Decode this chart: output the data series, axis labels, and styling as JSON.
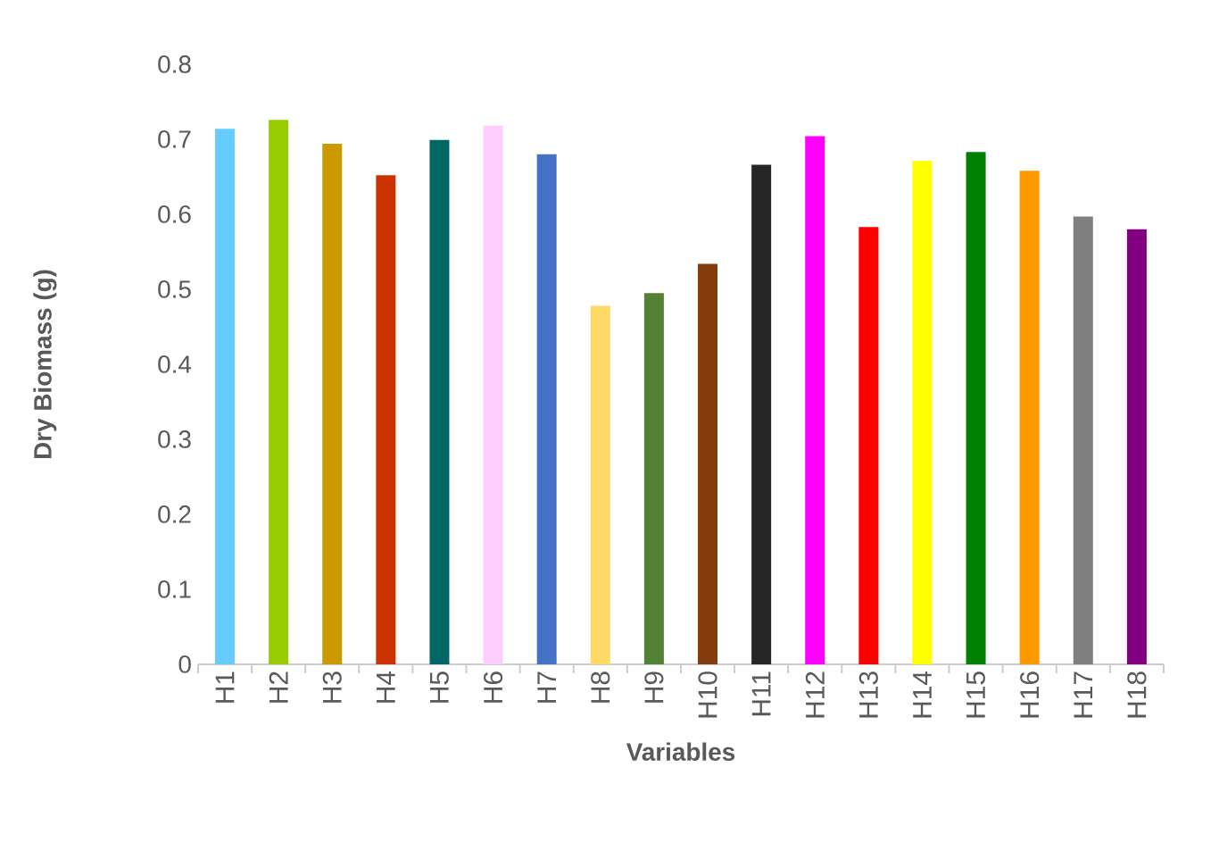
{
  "chart_data": {
    "type": "bar",
    "xlabel": "Variables",
    "ylabel": "Dry Biomass (g)",
    "categories": [
      "H1",
      "H2",
      "H3",
      "H4",
      "H5",
      "H6",
      "H7",
      "H8",
      "H9",
      "H10",
      "H11",
      "H12",
      "H13",
      "H14",
      "H15",
      "H16",
      "H17",
      "H18"
    ],
    "values": [
      0.714,
      0.726,
      0.694,
      0.652,
      0.699,
      0.718,
      0.68,
      0.478,
      0.495,
      0.534,
      0.666,
      0.704,
      0.583,
      0.671,
      0.683,
      0.658,
      0.597,
      0.58
    ],
    "colors": [
      "#66ccff",
      "#99cc00",
      "#cc9900",
      "#cc3300",
      "#006666",
      "#ffccff",
      "#4472c4",
      "#ffd966",
      "#548235",
      "#843c0c",
      "#262626",
      "#ff00ff",
      "#ff0000",
      "#ffff00",
      "#008000",
      "#ff9900",
      "#7f7f7f",
      "#800080"
    ],
    "ylim": [
      0,
      0.8
    ],
    "yticks": [
      0,
      0.1,
      0.2,
      0.3,
      0.4,
      0.5,
      0.6,
      0.7,
      0.8
    ],
    "grid": false
  }
}
